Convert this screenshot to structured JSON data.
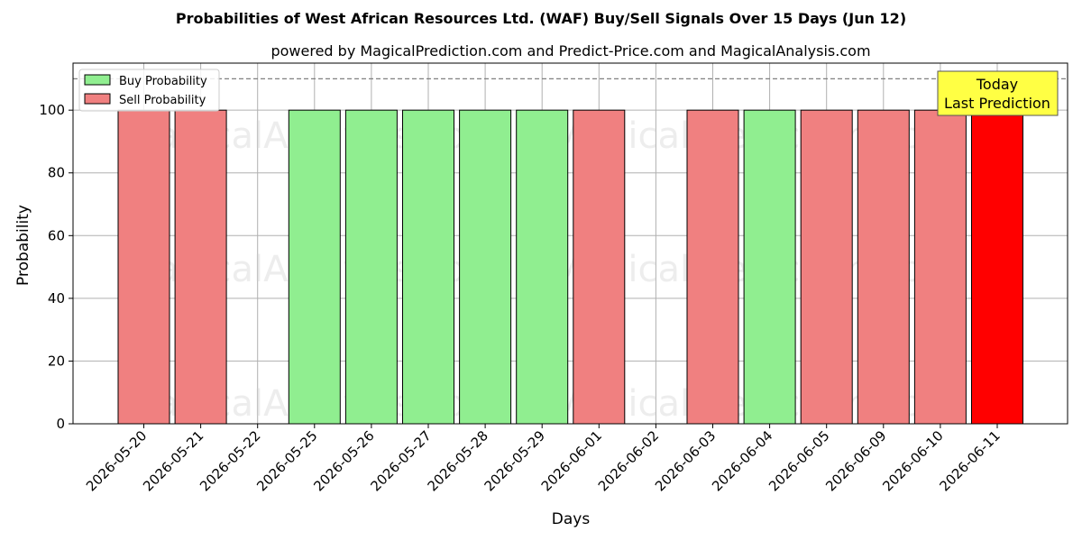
{
  "chart_data": {
    "type": "bar",
    "title": "Probabilities of West African Resources Ltd. (WAF) Buy/Sell Signals Over 15 Days (Jun 12)",
    "subtitle": "powered by MagicalPrediction.com and Predict-Price.com and MagicalAnalysis.com",
    "xlabel": "Days",
    "ylabel": "Probability",
    "ylim": [
      0,
      115
    ],
    "yticks": [
      0,
      20,
      40,
      60,
      80,
      100
    ],
    "grid": true,
    "legend_position": "top-left",
    "threshold_line": 110,
    "categories": [
      "2026-05-20",
      "2026-05-21",
      "2026-05-22",
      "2026-05-25",
      "2026-05-26",
      "2026-05-27",
      "2026-05-28",
      "2026-05-29",
      "2026-06-01",
      "2026-06-02",
      "2026-06-03",
      "2026-06-04",
      "2026-06-05",
      "2026-06-09",
      "2026-06-10",
      "2026-06-11"
    ],
    "series": [
      {
        "name": "Buy Probability",
        "color": "#90ee90",
        "values": [
          0,
          0,
          0,
          100,
          100,
          100,
          100,
          100,
          0,
          0,
          0,
          100,
          0,
          0,
          0,
          0
        ]
      },
      {
        "name": "Sell Probability",
        "color": "#f08080",
        "values": [
          100,
          100,
          0,
          0,
          0,
          0,
          0,
          0,
          100,
          0,
          100,
          0,
          100,
          100,
          100,
          100
        ]
      }
    ],
    "highlight": {
      "category": "2026-06-11",
      "color": "#ff0000"
    },
    "annotation": {
      "lines": [
        "Today",
        "Last Prediction"
      ],
      "background": "#ffff44"
    },
    "watermarks": [
      "MagicalAnalysis.com",
      "MagicalPrediction.com"
    ]
  }
}
